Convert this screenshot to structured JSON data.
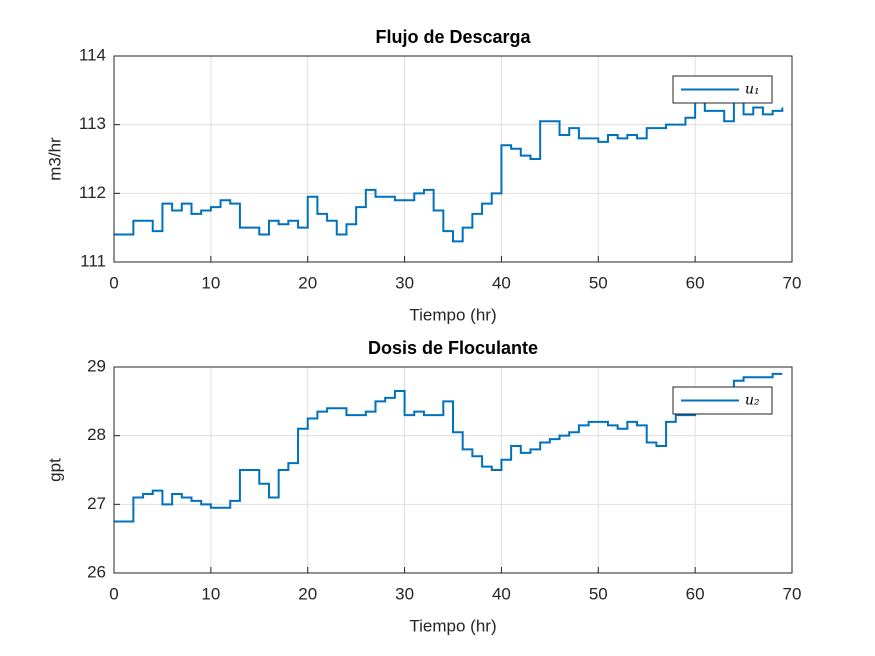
{
  "chart_data": [
    {
      "type": "line",
      "title": "Flujo de Descarga",
      "xlabel": "Tiempo (hr)",
      "ylabel": "m3/hr",
      "x": [
        0,
        1,
        2,
        3,
        4,
        5,
        6,
        7,
        8,
        9,
        10,
        11,
        12,
        13,
        14,
        15,
        16,
        17,
        18,
        19,
        20,
        21,
        22,
        23,
        24,
        25,
        26,
        27,
        28,
        29,
        30,
        31,
        32,
        33,
        34,
        35,
        36,
        37,
        38,
        39,
        40,
        41,
        42,
        43,
        44,
        45,
        46,
        47,
        48,
        49,
        50,
        51,
        52,
        53,
        54,
        55,
        56,
        57,
        58,
        59,
        60,
        61,
        62,
        63,
        64,
        65,
        66,
        67,
        68,
        69
      ],
      "series": [
        {
          "name": "u₁",
          "color": "#0072bd",
          "values": [
            111.4,
            111.4,
            111.6,
            111.6,
            111.45,
            111.85,
            111.75,
            111.85,
            111.7,
            111.75,
            111.8,
            111.9,
            111.85,
            111.5,
            111.5,
            111.4,
            111.6,
            111.55,
            111.6,
            111.5,
            111.95,
            111.7,
            111.6,
            111.4,
            111.55,
            111.8,
            112.05,
            111.95,
            111.95,
            111.9,
            111.9,
            112.0,
            112.05,
            111.75,
            111.45,
            111.3,
            111.5,
            111.7,
            111.85,
            112.0,
            112.7,
            112.65,
            112.55,
            112.5,
            113.05,
            113.05,
            112.85,
            112.95,
            112.8,
            112.8,
            112.75,
            112.85,
            112.8,
            112.85,
            112.8,
            112.95,
            112.95,
            113.0,
            113.0,
            113.1,
            113.35,
            113.2,
            113.2,
            113.05,
            113.4,
            113.15,
            113.25,
            113.15,
            113.2,
            113.25
          ]
        }
      ],
      "xlim": [
        0,
        70
      ],
      "ylim": [
        111,
        114
      ],
      "xticks": [
        0,
        10,
        20,
        30,
        40,
        50,
        60,
        70
      ],
      "yticks": [
        111,
        112,
        113,
        114
      ],
      "grid": true,
      "legend": "northeast",
      "step": true
    },
    {
      "type": "line",
      "title": "Dosis de Floculante",
      "xlabel": "Tiempo (hr)",
      "ylabel": "gpt",
      "x": [
        0,
        1,
        2,
        3,
        4,
        5,
        6,
        7,
        8,
        9,
        10,
        11,
        12,
        13,
        14,
        15,
        16,
        17,
        18,
        19,
        20,
        21,
        22,
        23,
        24,
        25,
        26,
        27,
        28,
        29,
        30,
        31,
        32,
        33,
        34,
        35,
        36,
        37,
        38,
        39,
        40,
        41,
        42,
        43,
        44,
        45,
        46,
        47,
        48,
        49,
        50,
        51,
        52,
        53,
        54,
        55,
        56,
        57,
        58,
        59,
        60,
        61,
        62,
        63,
        64,
        65,
        66,
        67,
        68,
        69
      ],
      "series": [
        {
          "name": "u₂",
          "color": "#0072bd",
          "values": [
            26.75,
            26.75,
            27.1,
            27.15,
            27.2,
            27.0,
            27.15,
            27.1,
            27.05,
            27.0,
            26.95,
            26.95,
            27.05,
            27.5,
            27.5,
            27.3,
            27.1,
            27.5,
            27.6,
            28.1,
            28.25,
            28.35,
            28.4,
            28.4,
            28.3,
            28.3,
            28.35,
            28.5,
            28.55,
            28.65,
            28.3,
            28.35,
            28.3,
            28.3,
            28.5,
            28.05,
            27.8,
            27.7,
            27.55,
            27.5,
            27.65,
            27.85,
            27.75,
            27.8,
            27.9,
            27.95,
            28.0,
            28.05,
            28.15,
            28.2,
            28.2,
            28.15,
            28.1,
            28.2,
            28.15,
            27.9,
            27.85,
            28.2,
            28.3,
            28.3,
            28.4,
            28.45,
            28.5,
            28.7,
            28.8,
            28.85,
            28.85,
            28.85,
            28.9,
            28.9
          ]
        }
      ],
      "xlim": [
        0,
        70
      ],
      "ylim": [
        26,
        29
      ],
      "xticks": [
        0,
        10,
        20,
        30,
        40,
        50,
        60,
        70
      ],
      "yticks": [
        26,
        27,
        28,
        29
      ],
      "grid": true,
      "legend": "northeast",
      "step": true
    }
  ]
}
